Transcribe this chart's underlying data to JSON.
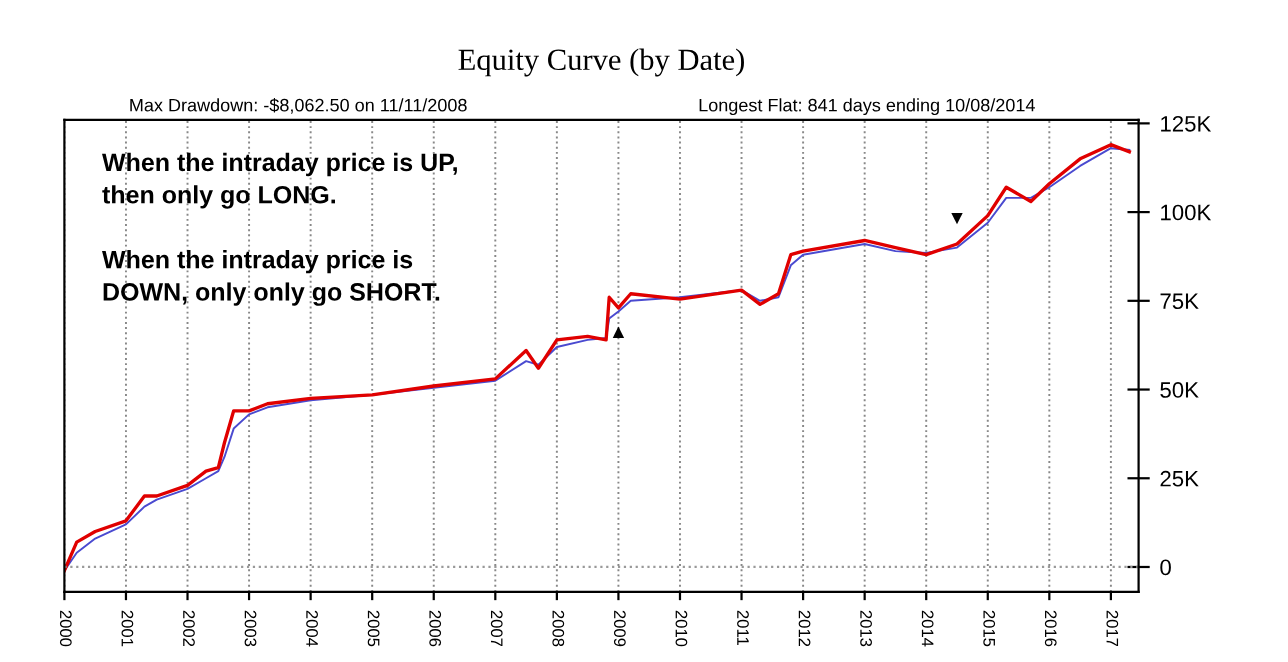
{
  "chart_data": {
    "type": "line",
    "title": "Equity Curve (by Date)",
    "x": [
      2000.0,
      2000.2,
      2000.5,
      2001.0,
      2001.3,
      2001.5,
      2002.0,
      2002.3,
      2002.5,
      2002.6,
      2002.75,
      2003.0,
      2003.3,
      2004.0,
      2005.0,
      2006.0,
      2007.0,
      2007.5,
      2007.7,
      2008.0,
      2008.5,
      2008.8,
      2008.85,
      2009.0,
      2009.2,
      2010.0,
      2011.0,
      2011.3,
      2011.6,
      2011.8,
      2012.0,
      2013.0,
      2013.5,
      2014.0,
      2014.5,
      2015.0,
      2015.3,
      2015.7,
      2016.0,
      2016.5,
      2017.0,
      2017.3
    ],
    "series": [
      {
        "color": "#e00000",
        "values": [
          -1000,
          7000,
          10000,
          13000,
          20000,
          20000,
          23000,
          27000,
          28000,
          35000,
          44000,
          44000,
          46000,
          47500,
          48500,
          51000,
          53000,
          61000,
          56000,
          64000,
          65000,
          64000,
          76000,
          73000,
          77000,
          75500,
          78000,
          74000,
          77000,
          88000,
          89000,
          92000,
          90000,
          88000,
          91000,
          99000,
          107000,
          103000,
          108000,
          115000,
          119000,
          117000
        ]
      },
      {
        "color": "#4a4ad0",
        "values": [
          -1000,
          4000,
          8000,
          12000,
          17000,
          19000,
          22000,
          25000,
          27000,
          31000,
          39000,
          43000,
          45000,
          47000,
          48500,
          50500,
          52500,
          58000,
          57000,
          62000,
          64000,
          64500,
          70000,
          72000,
          75000,
          76000,
          78000,
          75000,
          76000,
          85000,
          88000,
          91000,
          89000,
          88500,
          90000,
          97000,
          104000,
          104000,
          107000,
          113000,
          118000,
          117500
        ]
      }
    ],
    "xlim": [
      2000,
      2017.45
    ],
    "xticks": [
      2000,
      2001,
      2002,
      2003,
      2004,
      2005,
      2006,
      2007,
      2008,
      2009,
      2010,
      2011,
      2012,
      2013,
      2014,
      2015,
      2016,
      2017
    ],
    "ylim": [
      -7000,
      126000
    ],
    "yticks": [
      {
        "value": 0,
        "label": "0"
      },
      {
        "value": 25000,
        "label": "25K"
      },
      {
        "value": 50000,
        "label": "50K"
      },
      {
        "value": 75000,
        "label": "75K"
      },
      {
        "value": 100000,
        "label": "100K"
      },
      {
        "value": 125000,
        "label": "125K"
      }
    ],
    "grid": "x",
    "marker": "none",
    "line_style": "solid",
    "ref_lines": [
      {
        "axis": "y",
        "value": 0,
        "line_style": "dotted",
        "color": "#999999"
      }
    ],
    "annotations": [
      "Max Drawdown: -$8,062.50 on 11/11/2008",
      "Longest Flat: 841 days ending 10/08/2014",
      "When the intraday price is UP,\nthen only go LONG.\n\nWhen the intraday price is\nDOWN, only only go SHORT.",
      {
        "text": "▲",
        "x": 2009.0,
        "y": 73000
      },
      {
        "text": "▼",
        "x": 2014.5,
        "y": 91000
      }
    ]
  }
}
